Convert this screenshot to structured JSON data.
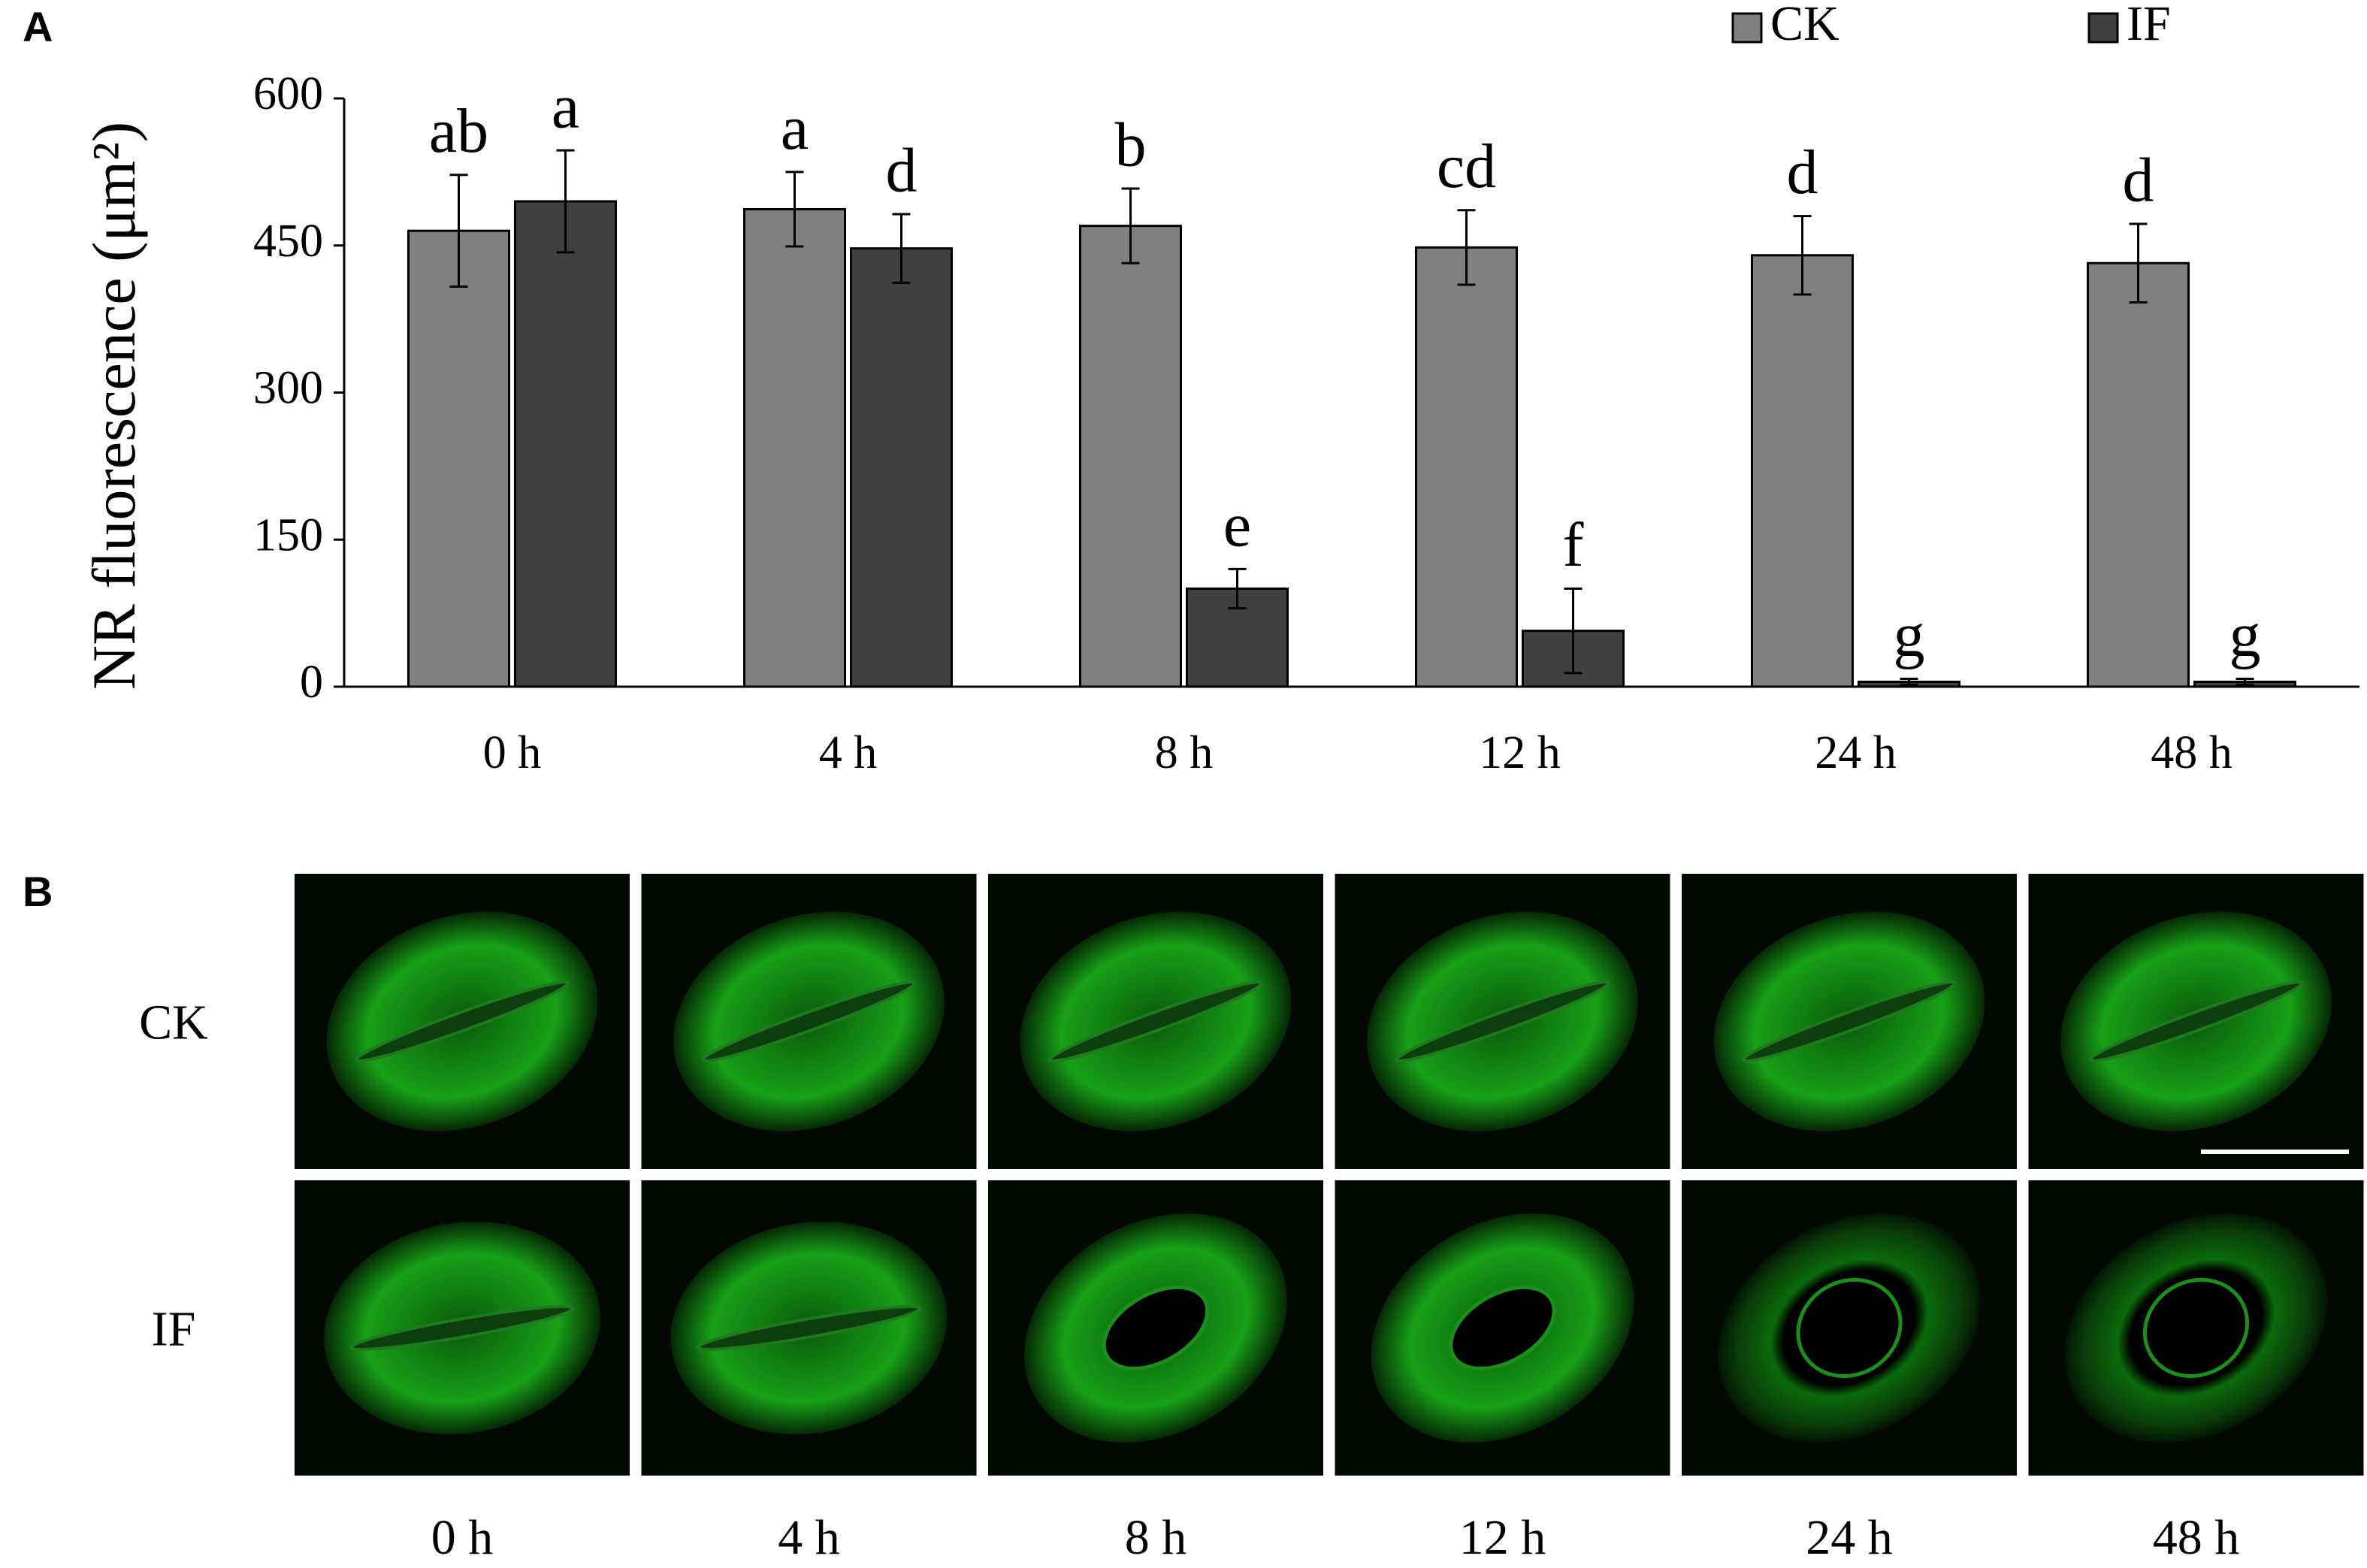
{
  "chart_data": {
    "type": "bar",
    "panel_label": "A",
    "y_label": "NR fluorescence (μm²)",
    "categories": [
      "0 h",
      "4 h",
      "8 h",
      "12 h",
      "24 h",
      "48 h"
    ],
    "series": [
      {
        "name": "CK",
        "color": "#808080",
        "values": [
          465,
          487,
          470,
          448,
          440,
          432
        ],
        "errors": [
          57,
          38,
          38,
          38,
          40,
          40
        ],
        "letters": [
          "ab",
          "a",
          "b",
          "cd",
          "d",
          "d"
        ]
      },
      {
        "name": "IF",
        "color": "#404040",
        "values": [
          495,
          447,
          100,
          57,
          5,
          5
        ],
        "errors": [
          52,
          35,
          20,
          43,
          3,
          3
        ],
        "letters": [
          "a",
          "d",
          "e",
          "f",
          "g",
          "g"
        ]
      }
    ],
    "ylim": [
      0,
      600
    ],
    "yticks": [
      0,
      150,
      300,
      450,
      600
    ],
    "grid": false,
    "legend": "top-right"
  },
  "panel_b": {
    "label": "B",
    "rows": [
      "CK",
      "IF"
    ],
    "columns": [
      "0 h",
      "4 h",
      "8 h",
      "12 h",
      "24 h",
      "48 h"
    ]
  }
}
